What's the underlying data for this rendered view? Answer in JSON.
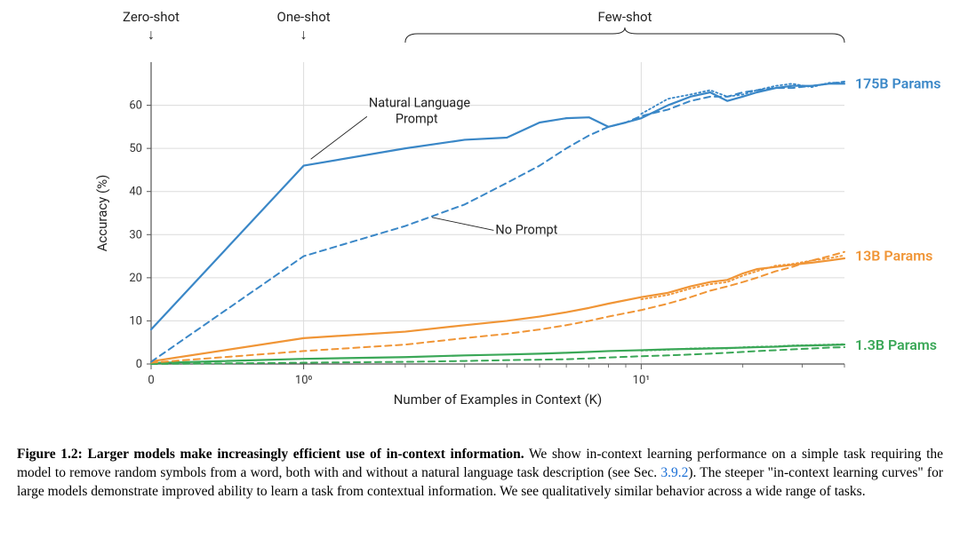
{
  "figure": {
    "title_labels": {
      "zero_shot": "Zero-shot",
      "one_shot": "One-shot",
      "few_shot": "Few-shot"
    },
    "annotations": {
      "natural_language_prompt": "Natural Language\nPrompt",
      "no_prompt": "No Prompt"
    },
    "axes": {
      "xlabel": "Number of Examples in Context  (K)",
      "ylabel": "Accuracy (%)",
      "xscale": "symlog_like",
      "xlim": [
        0,
        40
      ],
      "ylim": [
        0,
        70
      ],
      "yticks": [
        0,
        10,
        20,
        30,
        40,
        50,
        60
      ],
      "xticks_major": [
        0,
        1,
        10
      ],
      "xticks_major_labels": [
        "0",
        "10⁰",
        "10¹"
      ],
      "grid_color": "#dcdcdc",
      "axis_line_color": "#555555",
      "tick_fontsize": 13,
      "label_fontsize": 15,
      "background_color": "#ffffff"
    },
    "series_labels": {
      "s175b": "175B Params",
      "s13b": "13B Params",
      "s1_3b": "1.3B Params"
    },
    "colors": {
      "s175b": "#3a87c7",
      "s13b": "#f09536",
      "s1_3b": "#3aa757",
      "label_s175b": "#3a87c7",
      "label_s13b": "#f09536",
      "label_s1_3b": "#3aa757"
    },
    "line_style": {
      "solid_width": 2.2,
      "dashed_width": 2.0,
      "dash_pattern": "7,5",
      "dotted_width": 1.8,
      "dot_pattern": "2,3"
    },
    "series": {
      "s175b_solid": [
        [
          0,
          8
        ],
        [
          1,
          46
        ],
        [
          2,
          50
        ],
        [
          3,
          52
        ],
        [
          4,
          52.5
        ],
        [
          5,
          56
        ],
        [
          6,
          57
        ],
        [
          7,
          57.2
        ],
        [
          8,
          55
        ],
        [
          9,
          56
        ],
        [
          10,
          57
        ],
        [
          12,
          60
        ],
        [
          14,
          62
        ],
        [
          16,
          63
        ],
        [
          18,
          61
        ],
        [
          20,
          62
        ],
        [
          22,
          63
        ],
        [
          25,
          64
        ],
        [
          28,
          64.5
        ],
        [
          32,
          64.5
        ],
        [
          36,
          65
        ],
        [
          40,
          65
        ]
      ],
      "s175b_dashed": [
        [
          0,
          0.5
        ],
        [
          1,
          25
        ],
        [
          2,
          32
        ],
        [
          3,
          37
        ],
        [
          4,
          42
        ],
        [
          5,
          46
        ],
        [
          6,
          50
        ],
        [
          7,
          53
        ],
        [
          8,
          55
        ],
        [
          9,
          56
        ],
        [
          10,
          57.5
        ],
        [
          12,
          59
        ],
        [
          14,
          61
        ],
        [
          16,
          62
        ],
        [
          18,
          62
        ],
        [
          20,
          63
        ],
        [
          22,
          63.5
        ],
        [
          25,
          64
        ],
        [
          28,
          64
        ],
        [
          32,
          64.5
        ],
        [
          36,
          65
        ],
        [
          40,
          65.5
        ]
      ],
      "s175b_dotted": [
        [
          10,
          58
        ],
        [
          12,
          61.5
        ],
        [
          14,
          62.5
        ],
        [
          16,
          63.5
        ],
        [
          18,
          62
        ],
        [
          20,
          62.5
        ],
        [
          22,
          63.5
        ],
        [
          25,
          64.5
        ],
        [
          28,
          65
        ],
        [
          32,
          64.2
        ],
        [
          36,
          65.2
        ],
        [
          40,
          65.3
        ]
      ],
      "s13b_solid": [
        [
          0,
          0.6
        ],
        [
          1,
          6
        ],
        [
          2,
          7.5
        ],
        [
          3,
          9
        ],
        [
          4,
          10
        ],
        [
          5,
          11
        ],
        [
          6,
          12
        ],
        [
          7,
          13
        ],
        [
          8,
          14
        ],
        [
          10,
          15.5
        ],
        [
          12,
          16.5
        ],
        [
          14,
          18
        ],
        [
          16,
          19
        ],
        [
          18,
          19.5
        ],
        [
          20,
          21
        ],
        [
          22,
          22
        ],
        [
          25,
          22.5
        ],
        [
          28,
          23
        ],
        [
          32,
          23.5
        ],
        [
          36,
          24
        ],
        [
          40,
          24.5
        ]
      ],
      "s13b_dashed": [
        [
          0,
          0.3
        ],
        [
          1,
          3
        ],
        [
          2,
          4.5
        ],
        [
          3,
          6
        ],
        [
          4,
          7
        ],
        [
          5,
          8
        ],
        [
          6,
          9
        ],
        [
          7,
          10
        ],
        [
          8,
          11
        ],
        [
          10,
          12.5
        ],
        [
          12,
          14
        ],
        [
          14,
          15.5
        ],
        [
          16,
          17
        ],
        [
          18,
          18
        ],
        [
          20,
          19
        ],
        [
          22,
          20
        ],
        [
          25,
          21.5
        ],
        [
          28,
          22.5
        ],
        [
          32,
          24
        ],
        [
          36,
          25
        ],
        [
          40,
          26
        ]
      ],
      "s13b_dotted": [
        [
          10,
          15
        ],
        [
          12,
          16
        ],
        [
          14,
          17.5
        ],
        [
          16,
          18.5
        ],
        [
          18,
          19
        ],
        [
          20,
          20.5
        ],
        [
          22,
          21.5
        ],
        [
          25,
          22.8
        ],
        [
          28,
          23.2
        ],
        [
          32,
          24
        ],
        [
          36,
          24.5
        ],
        [
          40,
          25.2
        ]
      ],
      "s1_3b_solid": [
        [
          0,
          0.2
        ],
        [
          1,
          1.2
        ],
        [
          2,
          1.6
        ],
        [
          3,
          2.0
        ],
        [
          4,
          2.2
        ],
        [
          5,
          2.4
        ],
        [
          6,
          2.6
        ],
        [
          7,
          2.8
        ],
        [
          8,
          3
        ],
        [
          10,
          3.2
        ],
        [
          12,
          3.4
        ],
        [
          14,
          3.5
        ],
        [
          16,
          3.6
        ],
        [
          18,
          3.7
        ],
        [
          20,
          3.8
        ],
        [
          22,
          3.9
        ],
        [
          25,
          4
        ],
        [
          28,
          4.2
        ],
        [
          32,
          4.3
        ],
        [
          36,
          4.4
        ],
        [
          40,
          4.5
        ]
      ],
      "s1_3b_dashed": [
        [
          0,
          0
        ],
        [
          1,
          0.3
        ],
        [
          2,
          0.5
        ],
        [
          3,
          0.7
        ],
        [
          4,
          0.9
        ],
        [
          5,
          1.0
        ],
        [
          6,
          1.1
        ],
        [
          7,
          1.3
        ],
        [
          8,
          1.5
        ],
        [
          10,
          1.8
        ],
        [
          12,
          2.0
        ],
        [
          14,
          2.2
        ],
        [
          16,
          2.4
        ],
        [
          18,
          2.6
        ],
        [
          20,
          2.8
        ],
        [
          22,
          3.0
        ],
        [
          25,
          3.2
        ],
        [
          28,
          3.4
        ],
        [
          32,
          3.6
        ],
        [
          36,
          3.8
        ],
        [
          40,
          3.9
        ]
      ],
      "s1_3b_dotted": [
        [
          10,
          3.1
        ],
        [
          12,
          3.3
        ],
        [
          14,
          3.6
        ],
        [
          16,
          3.7
        ],
        [
          18,
          3.6
        ],
        [
          20,
          3.9
        ],
        [
          22,
          4.0
        ],
        [
          25,
          4.1
        ],
        [
          28,
          4.3
        ],
        [
          32,
          4.4
        ],
        [
          36,
          4.5
        ],
        [
          40,
          4.6
        ]
      ]
    }
  },
  "caption": {
    "lead_bold": "Figure 1.2: Larger models make increasingly efficient use of in-context information.",
    "body_1": "   We show in-context learning performance on a simple task requiring the model to remove random symbols from a word, both with and without a natural language task description (see Sec. ",
    "link_text": "3.9.2",
    "body_2": "). The steeper \"in-context learning curves\" for large models demonstrate improved ability to learn a task from contextual information. We see qualitatively similar behavior across a wide range of tasks."
  }
}
